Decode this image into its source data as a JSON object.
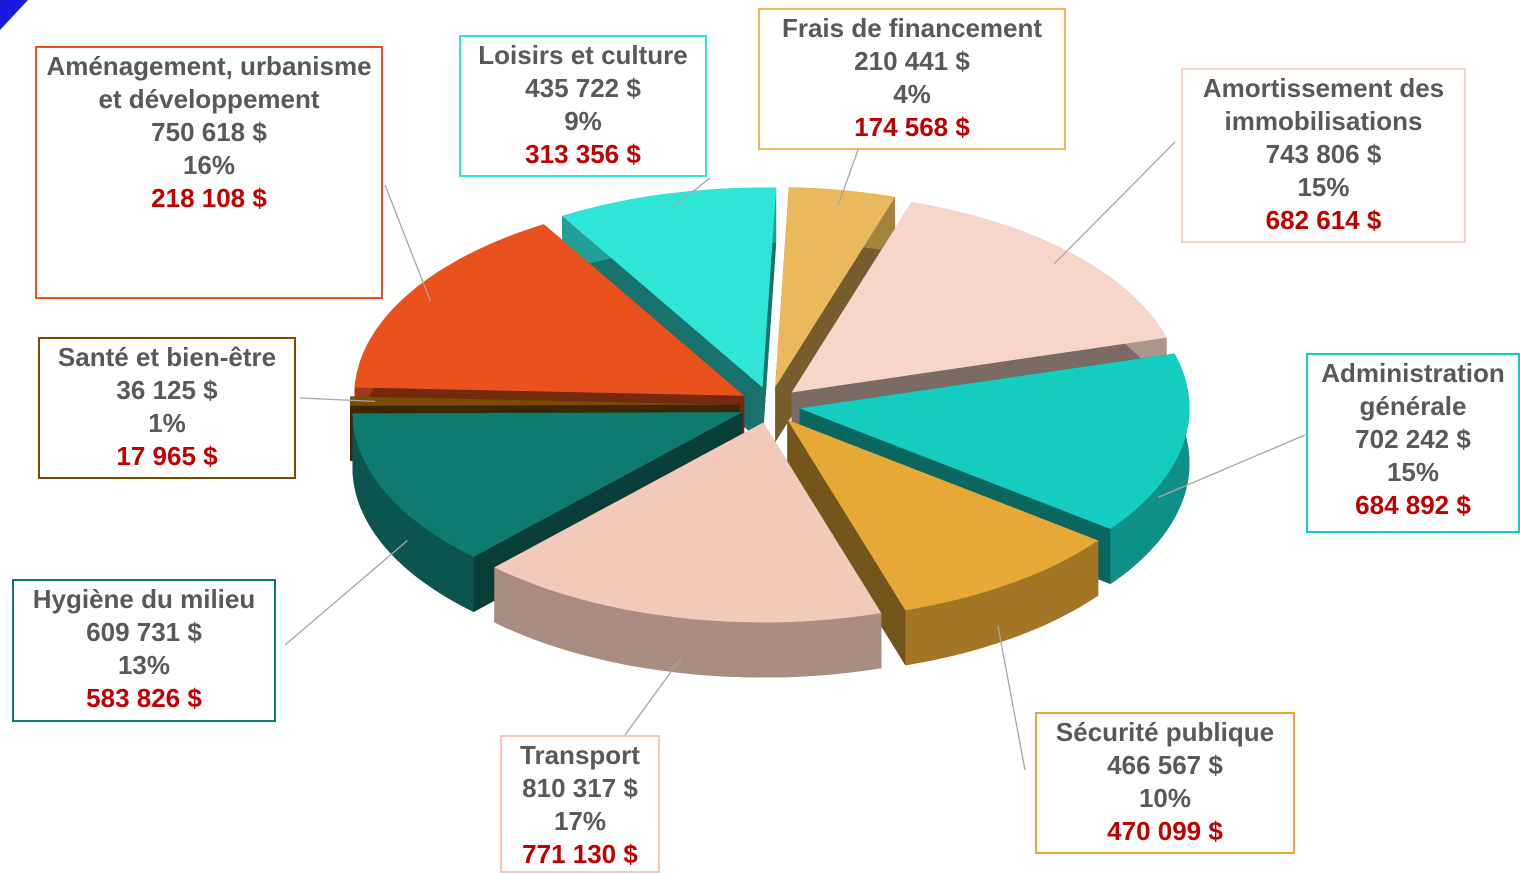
{
  "chart_data": {
    "type": "pie",
    "categories": [
      "Frais de financement",
      "Amortissement des immobilisations",
      "Administration générale",
      "Sécurité publique",
      "Transport",
      "Hygiène du milieu",
      "Santé et bien-être",
      "Aménagement, urbanisme et développement",
      "Loisirs et culture"
    ],
    "values": [
      210441,
      743806,
      702242,
      466567,
      810317,
      609731,
      36125,
      750618,
      435722
    ],
    "value_labels": [
      "210 441  $",
      "743 806  $",
      "702 242  $",
      "466 567  $",
      "810 317  $",
      "609 731  $",
      "36 125  $",
      "750 618  $",
      "435 722  $"
    ],
    "percents": [
      4,
      15,
      15,
      10,
      17,
      13,
      1,
      16,
      9
    ],
    "percent_labels": [
      "4%",
      "15%",
      "15%",
      "10%",
      "17%",
      "13%",
      "1%",
      "16%",
      "9%"
    ],
    "values_2": [
      174568,
      682614,
      684892,
      470099,
      771130,
      583826,
      17965,
      218108,
      313356
    ],
    "value_labels_2": [
      "174 568  $",
      "682 614  $",
      "684 892  $",
      "470 099  $",
      "771 130  $",
      "583 826  $",
      "17 965  $",
      "218 108  $",
      "313 356  $"
    ],
    "colors": [
      "#e9b95c",
      "#f6d6ca",
      "#14cdc0",
      "#e7a935",
      "#f3c9b9",
      "#0e7b6f",
      "#7a4b00",
      "#e9511d",
      "#2fe5d8"
    ]
  }
}
